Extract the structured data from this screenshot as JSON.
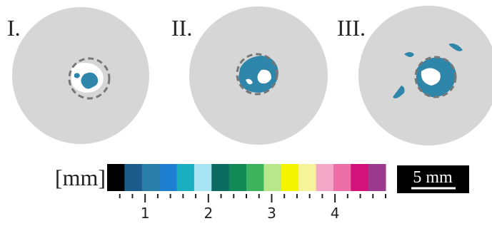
{
  "panels": [
    {
      "label": "I."
    },
    {
      "label": "II."
    },
    {
      "label": "III."
    }
  ],
  "colorbar": {
    "unit": "[mm]",
    "range": [
      0.4,
      4.8
    ],
    "colors": [
      "#000000",
      "#1b5c8a",
      "#2a7fa8",
      "#1f7fd0",
      "#1aaec0",
      "#a8e4f4",
      "#0b6b60",
      "#118a55",
      "#3cb35c",
      "#b8e68a",
      "#f4f400",
      "#f6f49a",
      "#f4a8c8",
      "#ee6ea8",
      "#d4127c",
      "#9c3b8e"
    ],
    "major_ticks": [
      1,
      2,
      3,
      4
    ],
    "minor_ticks": [
      0.6,
      0.8,
      1.2,
      1.4,
      1.6,
      1.8,
      2.2,
      2.4,
      2.6,
      2.8,
      3.2,
      3.4,
      3.6,
      3.8,
      4.2,
      4.4,
      4.6,
      4.8
    ]
  },
  "scale_bar": {
    "label": "5 mm"
  }
}
